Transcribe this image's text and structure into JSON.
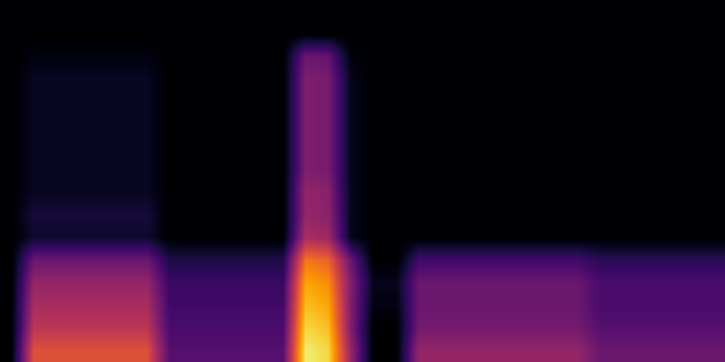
{
  "chart_data": {
    "type": "heatmap",
    "color": "inferno",
    "tick_labels": false,
    "grid": false,
    "value_range": [
      0,
      1
    ],
    "cells": [
      [
        0,
        0,
        0,
        0,
        0,
        0,
        0,
        0,
        0,
        0,
        0,
        0,
        0,
        0,
        0,
        0,
        0,
        0,
        0,
        0,
        0,
        0,
        0,
        0,
        0,
        0,
        0,
        0,
        0,
        0,
        0,
        0
      ],
      [
        0,
        0,
        0,
        0,
        0,
        0,
        0,
        0,
        0,
        0,
        0,
        0,
        0,
        0,
        0,
        0,
        0,
        0,
        0,
        0,
        0,
        0,
        0,
        0,
        0,
        0,
        0,
        0,
        0,
        0,
        0,
        0
      ],
      [
        0,
        0.03,
        0.03,
        0.03,
        0.03,
        0.03,
        0.03,
        0,
        0,
        0,
        0,
        0,
        0,
        0.3,
        0.28,
        0.02,
        0,
        0,
        0,
        0,
        0,
        0,
        0,
        0,
        0,
        0,
        0,
        0,
        0,
        0,
        0,
        0
      ],
      [
        0,
        0.06,
        0.06,
        0.06,
        0.06,
        0.06,
        0.06,
        0,
        0,
        0,
        0,
        0,
        0,
        0.35,
        0.33,
        0.05,
        0,
        0,
        0,
        0,
        0,
        0,
        0,
        0,
        0,
        0,
        0,
        0,
        0,
        0,
        0,
        0
      ],
      [
        0,
        0.06,
        0.06,
        0.06,
        0.06,
        0.06,
        0.06,
        0,
        0,
        0,
        0,
        0,
        0,
        0.35,
        0.33,
        0.05,
        0,
        0,
        0,
        0,
        0,
        0,
        0,
        0,
        0,
        0,
        0,
        0,
        0,
        0,
        0,
        0
      ],
      [
        0,
        0.06,
        0.06,
        0.06,
        0.06,
        0.06,
        0.06,
        0,
        0,
        0,
        0,
        0,
        0,
        0.35,
        0.33,
        0.05,
        0,
        0,
        0,
        0,
        0,
        0,
        0,
        0,
        0,
        0,
        0,
        0,
        0,
        0,
        0,
        0
      ],
      [
        0,
        0.06,
        0.06,
        0.06,
        0.06,
        0.06,
        0.06,
        0,
        0,
        0,
        0,
        0,
        0,
        0.35,
        0.33,
        0.05,
        0,
        0,
        0,
        0,
        0,
        0,
        0,
        0,
        0,
        0,
        0,
        0,
        0,
        0,
        0,
        0
      ],
      [
        0,
        0.06,
        0.06,
        0.06,
        0.06,
        0.06,
        0.06,
        0,
        0,
        0,
        0,
        0,
        0,
        0.35,
        0.33,
        0.05,
        0,
        0,
        0,
        0,
        0,
        0,
        0,
        0,
        0,
        0,
        0,
        0,
        0,
        0,
        0,
        0
      ],
      [
        0,
        0.06,
        0.06,
        0.06,
        0.06,
        0.06,
        0.06,
        0,
        0,
        0,
        0,
        0,
        0,
        0.4,
        0.37,
        0.05,
        0,
        0,
        0,
        0,
        0,
        0,
        0,
        0,
        0,
        0,
        0,
        0,
        0,
        0,
        0,
        0
      ],
      [
        0,
        0.1,
        0.1,
        0.1,
        0.1,
        0.1,
        0.1,
        0,
        0,
        0,
        0,
        0,
        0,
        0.4,
        0.38,
        0.05,
        0,
        0,
        0,
        0,
        0,
        0,
        0,
        0,
        0,
        0,
        0,
        0,
        0,
        0,
        0,
        0
      ],
      [
        0,
        0.08,
        0.08,
        0.08,
        0.08,
        0.08,
        0.08,
        0,
        0,
        0,
        0,
        0,
        0,
        0.45,
        0.42,
        0.05,
        0,
        0,
        0,
        0,
        0,
        0,
        0,
        0,
        0,
        0,
        0,
        0,
        0,
        0,
        0,
        0
      ],
      [
        0,
        0.3,
        0.3,
        0.3,
        0.3,
        0.3,
        0.3,
        0.12,
        0.12,
        0.12,
        0.12,
        0.12,
        0.12,
        0.7,
        0.65,
        0.3,
        0,
        0,
        0.2,
        0.2,
        0.2,
        0.2,
        0.2,
        0.2,
        0.2,
        0.2,
        0.15,
        0.15,
        0.15,
        0.15,
        0.15,
        0.15
      ],
      [
        0,
        0.4,
        0.4,
        0.4,
        0.4,
        0.4,
        0.4,
        0.18,
        0.18,
        0.18,
        0.18,
        0.18,
        0.18,
        0.8,
        0.75,
        0.35,
        0.05,
        0.05,
        0.3,
        0.3,
        0.3,
        0.3,
        0.3,
        0.3,
        0.3,
        0.3,
        0.22,
        0.22,
        0.22,
        0.22,
        0.22,
        0.22
      ],
      [
        0,
        0.45,
        0.45,
        0.45,
        0.45,
        0.45,
        0.45,
        0.2,
        0.2,
        0.2,
        0.2,
        0.2,
        0.2,
        0.85,
        0.8,
        0.35,
        0.03,
        0.03,
        0.3,
        0.3,
        0.3,
        0.3,
        0.3,
        0.3,
        0.3,
        0.3,
        0.22,
        0.22,
        0.22,
        0.22,
        0.22,
        0.22
      ],
      [
        0,
        0.5,
        0.5,
        0.5,
        0.5,
        0.5,
        0.5,
        0.22,
        0.22,
        0.22,
        0.22,
        0.22,
        0.22,
        0.9,
        0.85,
        0.35,
        0,
        0,
        0.32,
        0.32,
        0.32,
        0.32,
        0.32,
        0.32,
        0.32,
        0.32,
        0.25,
        0.25,
        0.25,
        0.25,
        0.25,
        0.25
      ],
      [
        0,
        0.6,
        0.6,
        0.6,
        0.6,
        0.6,
        0.6,
        0.25,
        0.25,
        0.25,
        0.25,
        0.25,
        0.25,
        0.95,
        0.9,
        0.4,
        0,
        0,
        0.4,
        0.4,
        0.4,
        0.4,
        0.4,
        0.4,
        0.4,
        0.4,
        0.3,
        0.3,
        0.3,
        0.3,
        0.3,
        0.3
      ]
    ]
  }
}
